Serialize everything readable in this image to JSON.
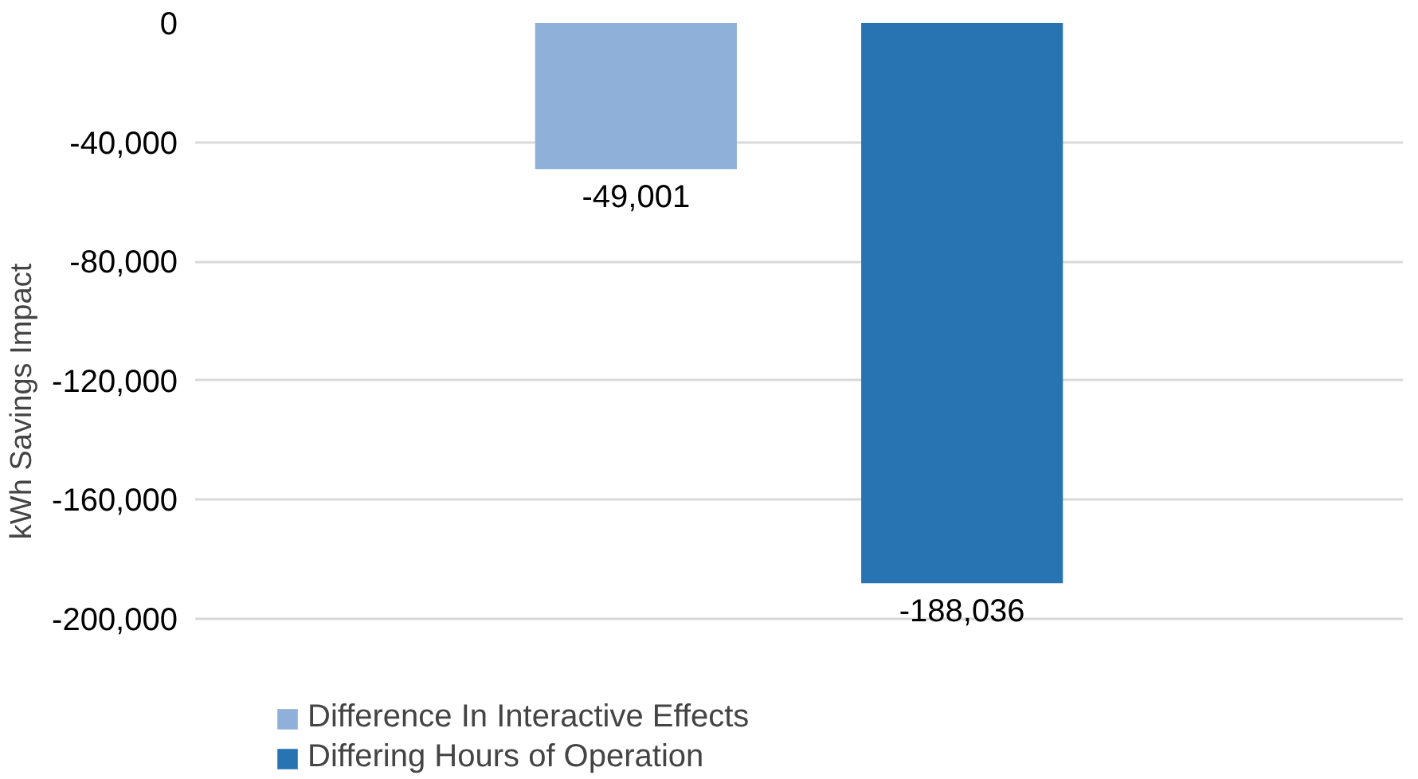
{
  "chart_data": {
    "type": "bar",
    "ylabel": "kWh Savings Impact",
    "categories": [
      null
    ],
    "series": [
      {
        "name": "Difference In Interactive Effects",
        "color": "#8eb0d9",
        "values": [
          -49001
        ],
        "value_labels": [
          "-49,001"
        ]
      },
      {
        "name": "Differing Hours of Operation",
        "color": "#2874b2",
        "values": [
          -188036
        ],
        "value_labels": [
          "-188,036"
        ]
      }
    ],
    "ylim": [
      -200000,
      0
    ],
    "yticks": [
      {
        "value": -200000,
        "label": "-200,000"
      },
      {
        "value": -160000,
        "label": "-160,000"
      },
      {
        "value": -120000,
        "label": "-120,000"
      },
      {
        "value": -80000,
        "label": "-80,000"
      },
      {
        "value": -40000,
        "label": "-40,000"
      },
      0
    ],
    "grid": "y",
    "legend": "bottom"
  }
}
